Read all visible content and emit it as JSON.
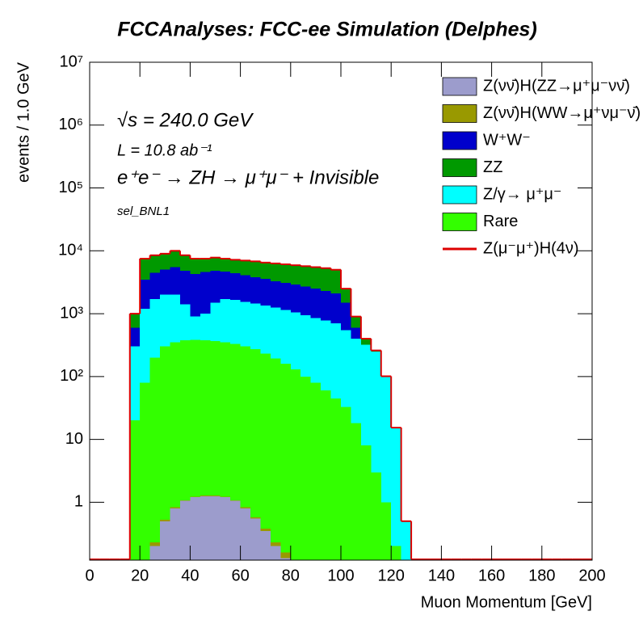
{
  "chart_data": {
    "type": "stacked_histogram",
    "title": "FCCAnalyses: FCC-ee Simulation (Delphes)",
    "xlabel": "Muon Momentum [GeV]",
    "ylabel": "events / 1.0 GeV",
    "annotations": [
      "√s = 240.0 GeV",
      "L = 10.8 ab⁻¹",
      "e⁺e⁻ → ZH → μ⁺μ⁻ + Invisible",
      "sel_BNL1"
    ],
    "log_y": true,
    "legend": "upper right",
    "xlim": [
      0,
      200
    ],
    "ylim": [
      0.12,
      10000000
    ],
    "xticks": [
      0,
      20,
      40,
      60,
      80,
      100,
      120,
      140,
      160,
      180,
      200
    ],
    "yticks": [
      1,
      10,
      {
        "value": 100,
        "label": "10²"
      },
      {
        "value": 1000,
        "label": "10³"
      },
      {
        "value": 10000,
        "label": "10⁴"
      },
      {
        "value": 100000,
        "label": "10⁵"
      },
      {
        "value": 1000000,
        "label": "10⁶"
      },
      {
        "value": 10000000,
        "label": "10⁷"
      }
    ],
    "bins": [
      0,
      4,
      8,
      12,
      16,
      20,
      24,
      28,
      32,
      36,
      40,
      44,
      48,
      52,
      56,
      60,
      64,
      68,
      72,
      76,
      80,
      84,
      88,
      92,
      96,
      100,
      104,
      108,
      112,
      116,
      120,
      124,
      128,
      132,
      136,
      140,
      144,
      148,
      152,
      156,
      160,
      164,
      168,
      172,
      176,
      180,
      184,
      188,
      192,
      196,
      200
    ],
    "series": [
      {
        "name": "Z(νν̄)H(ZZ→μ⁺μ⁻νν̄)",
        "color": "#9c9ccc",
        "values": [
          0,
          0,
          0,
          0,
          0,
          0,
          0.2,
          0.5,
          0.8,
          1.05,
          1.2,
          1.25,
          1.25,
          1.2,
          1.05,
          0.8,
          0.55,
          0.35,
          0.2,
          0.13,
          0.08,
          0,
          0,
          0,
          0,
          0,
          0,
          0,
          0,
          0,
          0,
          0,
          0,
          0,
          0,
          0,
          0,
          0,
          0,
          0,
          0,
          0,
          0,
          0,
          0,
          0,
          0,
          0,
          0,
          0
        ]
      },
      {
        "name": "Z(νν̄)H(WW→μ⁺νμ⁻ν̄)",
        "color": "#999900",
        "values": [
          0,
          0,
          0,
          0,
          0,
          0.03,
          0.03,
          0.03,
          0.03,
          0.03,
          0.03,
          0.03,
          0.03,
          0.03,
          0.03,
          0.03,
          0.03,
          0.03,
          0.03,
          0.03,
          0.03,
          0.03,
          0.03,
          0.03,
          0.03,
          0.03,
          0.03,
          0.03,
          0,
          0,
          0,
          0,
          0,
          0,
          0,
          0,
          0,
          0,
          0,
          0,
          0,
          0,
          0,
          0,
          0,
          0,
          0,
          0,
          0,
          0
        ]
      },
      {
        "name": "W⁺W⁻",
        "color": "#0000cc",
        "values": [
          0,
          0,
          0,
          0,
          300,
          2300,
          2800,
          3000,
          3500,
          3400,
          3400,
          3600,
          3300,
          3000,
          2750,
          2550,
          2350,
          2250,
          2050,
          1950,
          1850,
          1750,
          1650,
          1520,
          1400,
          950,
          200,
          0,
          0,
          0,
          0,
          0,
          0,
          0,
          0,
          0,
          0,
          0,
          0,
          0,
          0,
          0,
          0,
          0,
          0,
          0,
          0,
          0,
          0,
          0
        ]
      },
      {
        "name": "ZZ",
        "color": "#009900",
        "values": [
          0,
          0,
          0,
          0,
          400,
          4000,
          4000,
          4000,
          4500,
          3700,
          3200,
          2900,
          3000,
          2800,
          2800,
          2900,
          3000,
          2900,
          3000,
          3000,
          3000,
          3000,
          3000,
          3000,
          2900,
          1000,
          300,
          80,
          10,
          1,
          0.2,
          0,
          0,
          0,
          0,
          0,
          0,
          0,
          0,
          0,
          0,
          0,
          0,
          0,
          0,
          0,
          0,
          0,
          0,
          0
        ]
      },
      {
        "name": "Z/γ→ μ⁺μ⁻",
        "color": "#00ffff",
        "values": [
          0,
          0,
          0,
          0,
          280,
          1120,
          1500,
          1700,
          1650,
          1025,
          520,
          625,
          1135,
          1350,
          1320,
          1250,
          1180,
          1120,
          1055,
          990,
          920,
          850,
          770,
          720,
          655,
          517,
          382,
          312,
          247,
          99,
          15,
          0.5,
          0,
          0,
          0,
          0,
          0,
          0,
          0,
          0,
          0,
          0,
          0,
          0,
          0,
          0,
          0,
          0,
          0,
          0
        ]
      },
      {
        "name": "Rare",
        "color": "#33ff00",
        "values": [
          0,
          0,
          0,
          0,
          20,
          80,
          200,
          300,
          350,
          375,
          380,
          375,
          365,
          350,
          330,
          300,
          270,
          230,
          195,
          160,
          130,
          100,
          80,
          60,
          45,
          33,
          18,
          8,
          3,
          1,
          0.2,
          0,
          0,
          0,
          0,
          0,
          0,
          0,
          0,
          0,
          0,
          0,
          0,
          0,
          0,
          0,
          0,
          0,
          0,
          0
        ]
      },
      {
        "name": "Z(μ⁻μ⁺)H(4ν)",
        "color": "#dd0000",
        "values": [
          0,
          0,
          0,
          0,
          0,
          0,
          0,
          0,
          5,
          5,
          5,
          5,
          5,
          5,
          5,
          0,
          0,
          0,
          0,
          0,
          0,
          0,
          0,
          0,
          0,
          0,
          0,
          0,
          0,
          0,
          0,
          0,
          0,
          0,
          0,
          0,
          0,
          0,
          0,
          0,
          0,
          0,
          0,
          0,
          0,
          0,
          0,
          0,
          0,
          0
        ]
      }
    ]
  }
}
